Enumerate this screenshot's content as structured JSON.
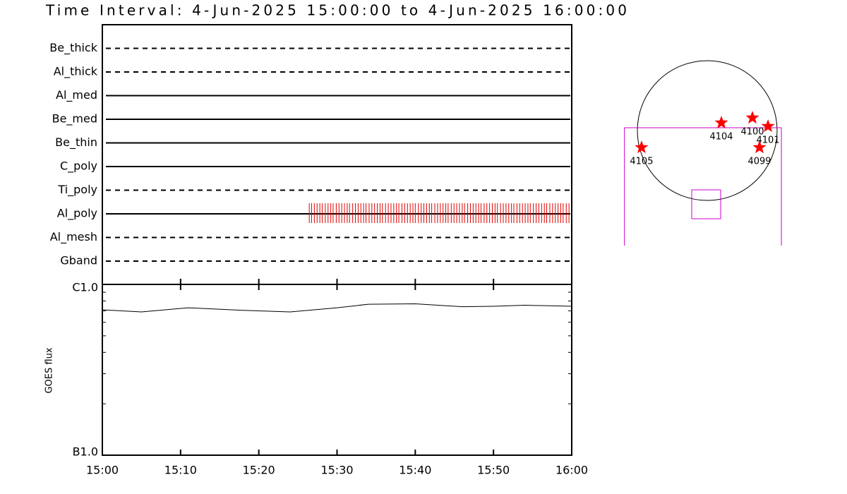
{
  "title": "Time Interval:  4-Jun-2025 15:00:00 to  4-Jun-2025 16:00:00",
  "chart_data": [
    {
      "type": "timeline",
      "categories": [
        "Be_thick",
        "Al_thick",
        "Al_med",
        "Be_med",
        "Be_thin",
        "C_poly",
        "Ti_poly",
        "Al_poly",
        "Al_mesh",
        "Gband"
      ],
      "styles": [
        "dashed",
        "dashed",
        "solid",
        "solid",
        "solid",
        "solid",
        "dashed",
        "solid",
        "dashed",
        "dashed"
      ],
      "xlim": [
        0,
        60
      ],
      "observations": [
        {
          "category": "Al_poly",
          "color": "#e00000",
          "x": [
            26.45,
            26.75,
            27.1,
            27.45,
            27.8,
            28.1,
            28.5,
            28.85,
            29.2,
            29.5,
            29.9,
            30.25,
            30.6,
            30.95,
            31.3,
            31.6,
            32.0,
            32.35,
            32.7,
            33.05,
            33.4,
            33.7,
            34.1,
            34.45,
            34.8,
            35.15,
            35.5,
            35.8,
            36.2,
            36.55,
            36.9,
            37.25,
            37.6,
            37.9,
            38.3,
            38.65,
            39.0,
            39.35,
            39.7,
            40.0,
            40.4,
            40.75,
            41.1,
            41.45,
            41.8,
            42.1,
            42.5,
            42.85,
            43.2,
            43.55,
            43.9,
            44.2,
            44.6,
            44.95,
            45.3,
            45.65,
            46.0,
            46.3,
            46.7,
            47.05,
            47.4,
            47.75,
            48.1,
            48.4,
            48.8,
            49.15,
            49.5,
            49.85,
            50.2,
            50.5,
            50.9,
            51.25,
            51.6,
            51.95,
            52.3,
            52.6,
            53.0,
            53.35,
            53.7,
            54.05,
            54.4,
            54.7,
            55.1,
            55.45,
            55.8,
            56.15,
            56.5,
            56.8,
            57.2,
            57.55,
            57.9,
            58.25,
            58.6,
            58.9,
            59.3,
            59.65
          ]
        }
      ]
    },
    {
      "type": "line",
      "ylabel": "GOES flux",
      "x": [
        0,
        5,
        11,
        18,
        24,
        30,
        34,
        40,
        46,
        50,
        54,
        60
      ],
      "values": [
        7.1e-07,
        6.9e-07,
        7.3e-07,
        7.05e-07,
        6.9e-07,
        7.3e-07,
        7.65e-07,
        7.7e-07,
        7.4e-07,
        7.45e-07,
        7.55e-07,
        7.45e-07
      ],
      "color": "#000000",
      "xlim": [
        0,
        60
      ],
      "xticks": [
        {
          "value": 0,
          "label": "15:00"
        },
        {
          "value": 10,
          "label": "15:10"
        },
        {
          "value": 20,
          "label": "15:20"
        },
        {
          "value": 30,
          "label": "15:30"
        },
        {
          "value": 40,
          "label": "15:40"
        },
        {
          "value": 50,
          "label": "15:50"
        },
        {
          "value": 60,
          "label": "16:00"
        }
      ],
      "ylog": true,
      "ylim": [
        1e-07,
        1e-06
      ],
      "yticks": [
        {
          "value": 1e-07,
          "label": "B1.0"
        },
        {
          "value": 1e-06,
          "label": "C1.0"
        }
      ],
      "yminorticks": [
        2e-07,
        3e-07,
        4e-07,
        5e-07,
        6e-07,
        7e-07,
        8e-07,
        9e-07
      ]
    },
    {
      "type": "map",
      "disk_radius": 950,
      "regions": [
        {
          "label": "4104",
          "x": 192,
          "y": 106
        },
        {
          "label": "4100",
          "x": 614,
          "y": 173
        },
        {
          "label": "4101",
          "x": 826,
          "y": 58
        },
        {
          "label": "4099",
          "x": 710,
          "y": -230
        },
        {
          "label": "4105",
          "x": -893,
          "y": -230
        }
      ],
      "marker_color": "#ff0000",
      "boxes": [
        {
          "x": [
            -1126,
            1008
          ],
          "y": [
            38,
            -1565
          ],
          "open_bottom": true,
          "color": "#cc00cc"
        },
        {
          "x": [
            -211,
            182
          ],
          "y": [
            -806,
            -1200
          ],
          "open_bottom": false,
          "color": "#cc00cc"
        }
      ]
    }
  ]
}
